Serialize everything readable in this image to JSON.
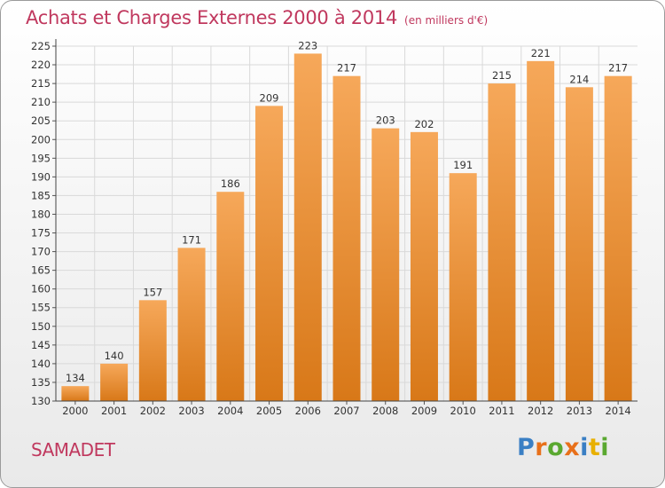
{
  "header": {
    "title": "Achats et Charges Externes 2000 à 2014",
    "subtitle": "(en milliers d'€)"
  },
  "footer": {
    "commune": "SAMADET",
    "logo_text": "Proxiti",
    "logo_colors": [
      "#3a7fc4",
      "#e8701a",
      "#5aa830",
      "#e8701a",
      "#3a7fc4",
      "#e8b000",
      "#5aa830"
    ]
  },
  "colors": {
    "bar_light": "#f6a85a",
    "bar_dark": "#d87818",
    "title": "#c0385e",
    "grid": "#d9d9d9"
  },
  "chart_data": {
    "type": "bar",
    "title": "Achats et Charges Externes 2000 à 2014",
    "subtitle": "(en milliers d'€)",
    "categories": [
      "2000",
      "2001",
      "2002",
      "2003",
      "2004",
      "2005",
      "2006",
      "2007",
      "2008",
      "2009",
      "2010",
      "2011",
      "2012",
      "2013",
      "2014"
    ],
    "values": [
      134,
      140,
      157,
      171,
      186,
      209,
      223,
      217,
      203,
      202,
      191,
      215,
      221,
      214,
      217
    ],
    "ylim": [
      130,
      225
    ],
    "yticks": [
      130,
      135,
      140,
      145,
      150,
      155,
      160,
      165,
      170,
      175,
      180,
      185,
      190,
      195,
      200,
      205,
      210,
      215,
      220,
      225
    ],
    "grid": true,
    "legend": "none"
  }
}
